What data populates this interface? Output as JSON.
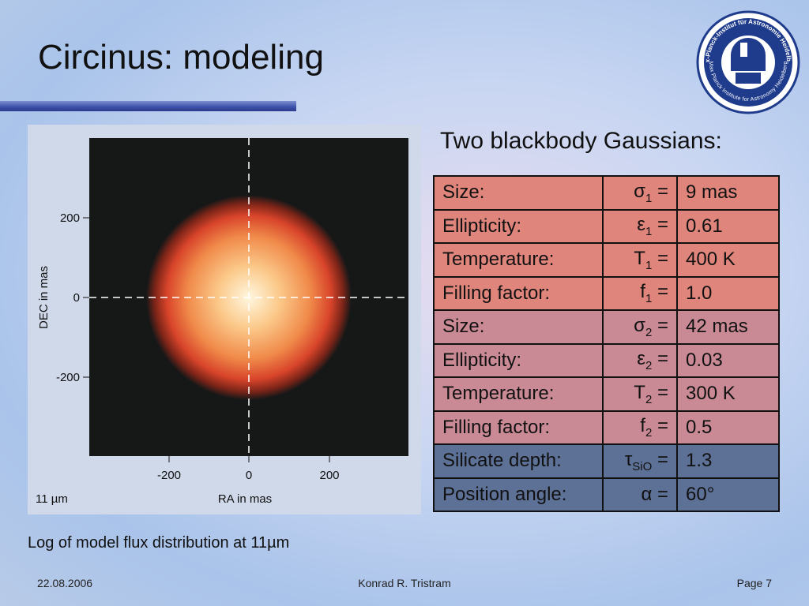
{
  "header": {
    "title": "Circinus: modeling"
  },
  "logo": {
    "outer_text": "Max-Planck-Institut für Astronomie Heidelberg",
    "inner_text": "Max Planck Institute for Astronomy Heidelberg"
  },
  "figure": {
    "y_label": "DEC in mas",
    "x_label": "RA in mas",
    "wavelength": "11 µm",
    "yticks": [
      "200",
      "0",
      "-200"
    ],
    "xticks": [
      "-200",
      "0",
      "200"
    ],
    "caption": "Log of model flux distribution at 11µm"
  },
  "table": {
    "heading": "Two blackbody Gaussians:",
    "rows": [
      {
        "label": "Size:",
        "sym": "σ",
        "sub": "1",
        "eq": "=",
        "value": "9 mas"
      },
      {
        "label": "Ellipticity:",
        "sym": "ε",
        "sub": "1",
        "eq": "=",
        "value": "0.61"
      },
      {
        "label": "Temperature:",
        "sym": "T",
        "sub": "1",
        "eq": "=",
        "value": "400 K"
      },
      {
        "label": "Filling factor:",
        "sym": "f",
        "sub": "1",
        "eq": "=",
        "value": "1.0"
      },
      {
        "label": "Size:",
        "sym": "σ",
        "sub": "2",
        "eq": "=",
        "value": "42 mas"
      },
      {
        "label": "Ellipticity:",
        "sym": "ε",
        "sub": "2",
        "eq": "=",
        "value": "0.03"
      },
      {
        "label": "Temperature:",
        "sym": "T",
        "sub": "2",
        "eq": "=",
        "value": "300 K"
      },
      {
        "label": "Filling factor:",
        "sym": "f",
        "sub": "2",
        "eq": "=",
        "value": "0.5"
      },
      {
        "label": "Silicate depth:",
        "sym": "τ",
        "sub": "SiO",
        "eq": "=",
        "value": "1.3"
      },
      {
        "label": "Position angle:",
        "sym": "α",
        "sub": "",
        "eq": "=",
        "value": "60°"
      }
    ]
  },
  "footer": {
    "date": "22.08.2006",
    "author": "Konrad R. Tristram",
    "page": "Page 7"
  }
}
